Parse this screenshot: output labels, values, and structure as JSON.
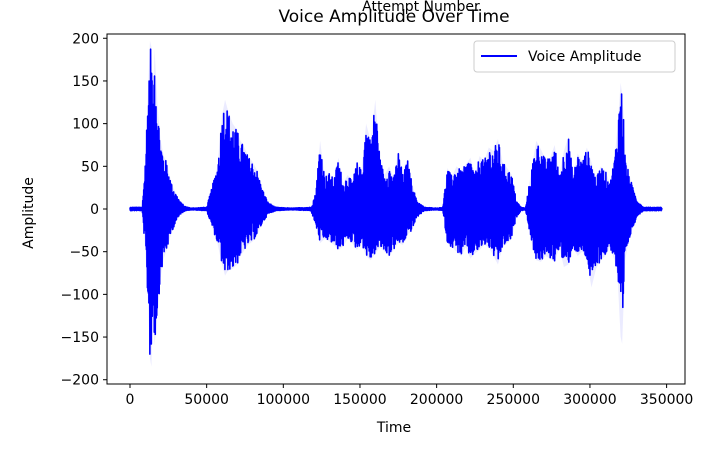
{
  "chart_data": {
    "type": "line",
    "title": "Voice Amplitude Over Time",
    "suptitle": "Attempt Number",
    "xlabel": "Time",
    "ylabel": "Amplitude",
    "xlim": [
      -15000,
      362000
    ],
    "ylim": [
      -205,
      205
    ],
    "xticks": [
      0,
      50000,
      100000,
      150000,
      200000,
      250000,
      300000,
      350000
    ],
    "yticks": [
      -200,
      -150,
      -100,
      -50,
      0,
      50,
      100,
      150,
      200
    ],
    "grid": false,
    "legend": {
      "position": "upper right",
      "entries": [
        "Voice Amplitude"
      ]
    },
    "series": [
      {
        "name": "Voice Amplitude",
        "color": "#0000ff",
        "style": "dense oscillating waveform; envelope of peaks below",
        "x": [
          0,
          8000,
          10000,
          12000,
          13000,
          14000,
          15000,
          16000,
          18000,
          20000,
          22000,
          24000,
          27000,
          30000,
          33000,
          36000,
          40000,
          50000,
          57000,
          60000,
          62000,
          64000,
          67000,
          70000,
          72000,
          74000,
          77000,
          80000,
          83000,
          86000,
          90000,
          95000,
          105000,
          118000,
          121000,
          124000,
          127000,
          130000,
          133000,
          136000,
          139000,
          142000,
          145000,
          148000,
          151000,
          154000,
          157000,
          160000,
          163000,
          166000,
          169000,
          172000,
          175000,
          178000,
          181000,
          184000,
          187000,
          192000,
          200000,
          204000,
          207000,
          210000,
          213000,
          216000,
          219000,
          222000,
          225000,
          228000,
          231000,
          234000,
          237000,
          240000,
          243000,
          246000,
          249000,
          252000,
          255000,
          258000,
          262000,
          265000,
          268000,
          271000,
          274000,
          277000,
          280000,
          283000,
          286000,
          289000,
          292000,
          295000,
          298000,
          301000,
          304000,
          307000,
          310000,
          313000,
          316000,
          318000,
          320000,
          321000,
          322000,
          323000,
          325000,
          328000,
          331000,
          335000,
          347000
        ],
        "y_max": [
          2,
          2,
          60,
          150,
          197,
          190,
          120,
          188,
          120,
          80,
          62,
          55,
          30,
          18,
          8,
          3,
          1,
          2,
          50,
          110,
          128,
          115,
          100,
          92,
          80,
          75,
          62,
          55,
          45,
          25,
          8,
          2,
          1,
          2,
          18,
          80,
          38,
          42,
          35,
          60,
          30,
          40,
          32,
          55,
          45,
          100,
          80,
          128,
          60,
          40,
          50,
          36,
          68,
          40,
          58,
          30,
          10,
          2,
          1,
          2,
          48,
          38,
          50,
          45,
          52,
          60,
          40,
          62,
          56,
          72,
          68,
          82,
          55,
          48,
          40,
          10,
          2,
          1,
          48,
          80,
          70,
          58,
          60,
          75,
          40,
          68,
          85,
          40,
          65,
          55,
          72,
          55,
          35,
          50,
          45,
          30,
          60,
          95,
          148,
          135,
          110,
          60,
          45,
          25,
          10,
          2,
          2
        ],
        "y_min": [
          -2,
          -2,
          -50,
          -120,
          -175,
          -185,
          -110,
          -160,
          -120,
          -80,
          -58,
          -48,
          -28,
          -15,
          -6,
          -2,
          -1,
          -2,
          -40,
          -65,
          -78,
          -72,
          -70,
          -65,
          -55,
          -50,
          -42,
          -38,
          -30,
          -18,
          -6,
          -2,
          -1,
          -2,
          -18,
          -40,
          -35,
          -38,
          -42,
          -48,
          -44,
          -35,
          -40,
          -48,
          -40,
          -55,
          -60,
          -52,
          -45,
          -50,
          -55,
          -48,
          -40,
          -42,
          -30,
          -25,
          -10,
          -2,
          -1,
          -2,
          -40,
          -45,
          -50,
          -55,
          -45,
          -58,
          -52,
          -48,
          -42,
          -45,
          -55,
          -65,
          -45,
          -40,
          -35,
          -10,
          -2,
          -1,
          -40,
          -60,
          -62,
          -55,
          -58,
          -62,
          -45,
          -68,
          -65,
          -45,
          -55,
          -50,
          -60,
          -92,
          -70,
          -60,
          -55,
          -45,
          -60,
          -80,
          -150,
          -158,
          -110,
          -60,
          -40,
          -22,
          -8,
          -2,
          -2
        ]
      }
    ]
  }
}
